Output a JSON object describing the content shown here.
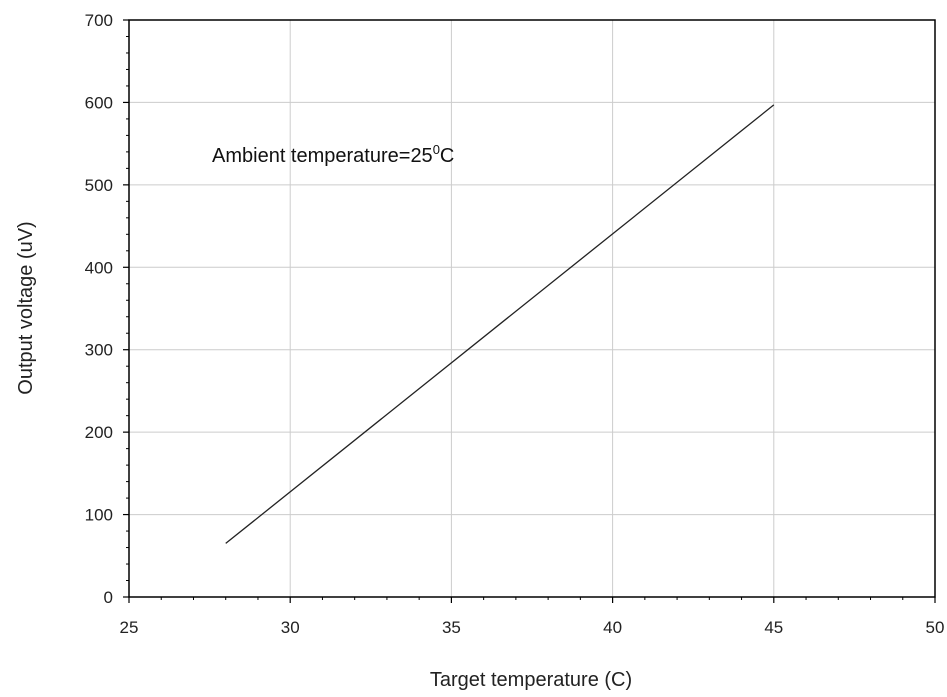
{
  "chart_data": {
    "type": "line",
    "xlabel": "Target temperature (C)",
    "ylabel": "Output voltage (uV)",
    "xlim": [
      25,
      50
    ],
    "ylim": [
      0,
      700
    ],
    "xticks": [
      25,
      30,
      35,
      40,
      45,
      50
    ],
    "yticks": [
      0,
      100,
      200,
      300,
      400,
      500,
      600,
      700
    ],
    "grid": true,
    "annotation": {
      "text": "Ambient temperature=25",
      "superscript": "0",
      "unit": "C"
    },
    "series": [
      {
        "x": [
          28,
          45
        ],
        "y": [
          65,
          597
        ]
      }
    ],
    "colors": {
      "line": "#222222",
      "grid": "#cccccc",
      "axis": "#000000"
    }
  }
}
